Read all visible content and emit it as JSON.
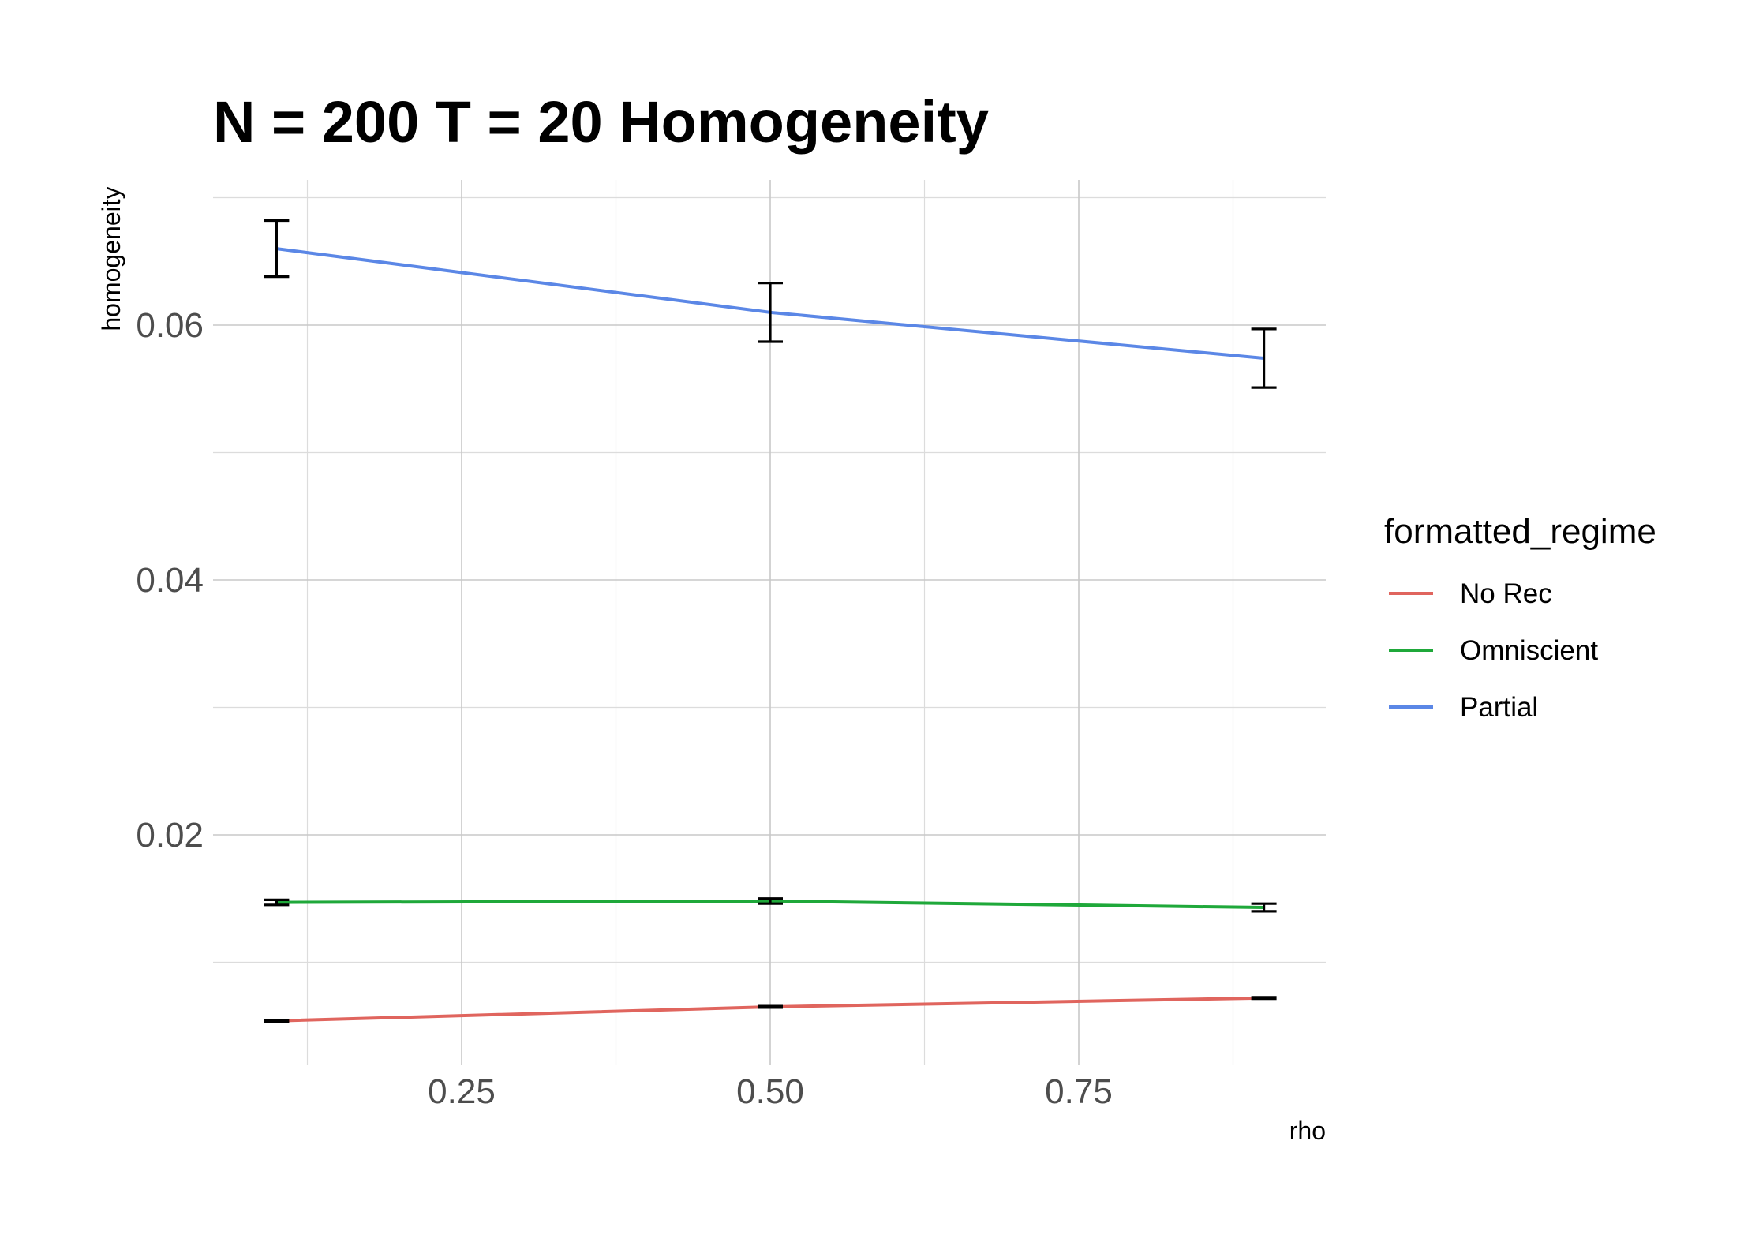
{
  "chart_data": {
    "type": "line",
    "title": "N = 200 T = 20 Homogeneity",
    "xlabel": "rho",
    "ylabel": "homogeneity",
    "xlim": [
      0.1,
      0.9
    ],
    "ylim": [
      0.005,
      0.069
    ],
    "x_ticks": [
      0.25,
      0.5,
      0.75
    ],
    "x_tick_labels": [
      "0.25",
      "0.50",
      "0.75"
    ],
    "y_ticks": [
      0.02,
      0.04,
      0.06
    ],
    "y_tick_labels": [
      "0.02",
      "0.04",
      "0.06"
    ],
    "grid": true,
    "legend": {
      "title": "formatted_regime",
      "position": "right"
    },
    "x": [
      0.1,
      0.5,
      0.9
    ],
    "series": [
      {
        "name": "No Rec",
        "color": "#e0655e",
        "values": [
          0.0054,
          0.0065,
          0.0072
        ],
        "err_low": [
          0.0054,
          0.0065,
          0.0072
        ],
        "err_high": [
          0.0054,
          0.0065,
          0.0072
        ]
      },
      {
        "name": "Omniscient",
        "color": "#1fa83a",
        "values": [
          0.0147,
          0.0148,
          0.0143
        ],
        "err_low": [
          0.0145,
          0.0146,
          0.014
        ],
        "err_high": [
          0.0149,
          0.015,
          0.0146
        ]
      },
      {
        "name": "Partial",
        "color": "#5b87e6",
        "values": [
          0.066,
          0.061,
          0.0574
        ],
        "err_low": [
          0.0638,
          0.0587,
          0.0551
        ],
        "err_high": [
          0.0682,
          0.0633,
          0.0597
        ]
      }
    ]
  }
}
